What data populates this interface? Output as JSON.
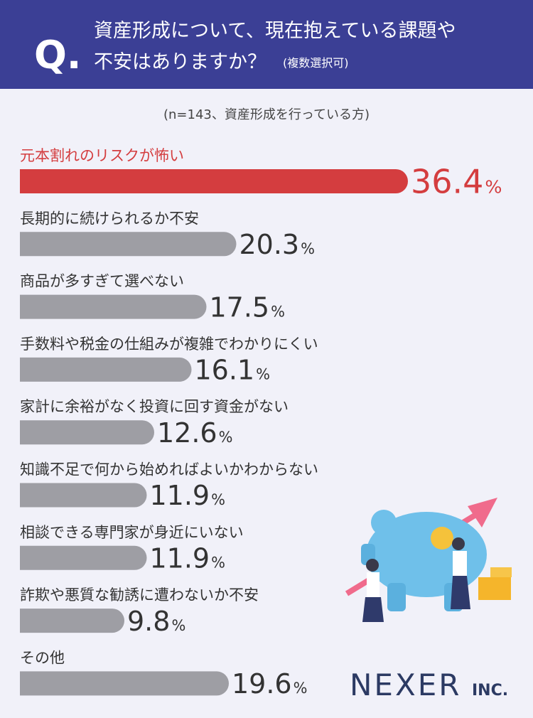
{
  "header": {
    "marker": "Q."
  },
  "chart_data": {
    "type": "bar",
    "orientation": "horizontal",
    "title": [
      "資産形成について、現在抱えている課題や",
      "不安はありますか？"
    ],
    "title_note": "(複数選択可)",
    "subtitle": "(n=143、資産形成を行っている方)",
    "categories": [
      "元本割れのリスクが怖い",
      "長期的に続けられるか不安",
      "商品が多すぎて選べない",
      "手数料や税金の仕組みが複雑でわかりにくい",
      "家計に余裕がなく投資に回す資金がない",
      "知識不足で何から始めればよいかわからない",
      "相談できる専門家が身近にいない",
      "詐欺や悪質な勧誘に遭わないか不安",
      "その他"
    ],
    "values": [
      36.4,
      20.3,
      17.5,
      16.1,
      12.6,
      11.9,
      11.9,
      9.8,
      19.6
    ],
    "value_unit": "%",
    "colors": [
      "#d43d3f",
      "#9e9ea4",
      "#9e9ea4",
      "#9e9ea4",
      "#9e9ea4",
      "#9e9ea4",
      "#9e9ea4",
      "#9e9ea4",
      "#9e9ea4"
    ],
    "label_colors": [
      "#d43d3f",
      "#333333",
      "#333333",
      "#333333",
      "#333333",
      "#333333",
      "#333333",
      "#333333",
      "#333333"
    ]
  },
  "logo": [
    "NEXER",
    "INC."
  ]
}
